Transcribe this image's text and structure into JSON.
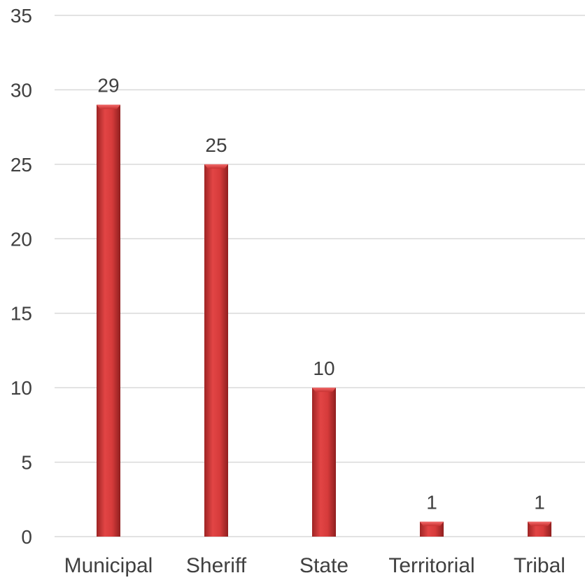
{
  "chart_data": {
    "type": "bar",
    "categories": [
      "Municipal",
      "Sheriff",
      "State",
      "Territorial",
      "Tribal"
    ],
    "series": [
      {
        "values": [
          29,
          25,
          10,
          1,
          1
        ]
      }
    ],
    "data_labels": [
      "29",
      "25",
      "10",
      "1",
      "1"
    ],
    "title": "",
    "xlabel": "",
    "ylabel": "",
    "ylim": [
      0,
      35
    ],
    "yticks": [
      0,
      5,
      10,
      15,
      20,
      25,
      30,
      35
    ],
    "ytick_labels": [
      "0",
      "5",
      "10",
      "15",
      "20",
      "25",
      "30",
      "35"
    ],
    "grid": true,
    "legend": "none",
    "bar_color": "#c0302e",
    "bar_highlight_color": "#e84a4a"
  }
}
